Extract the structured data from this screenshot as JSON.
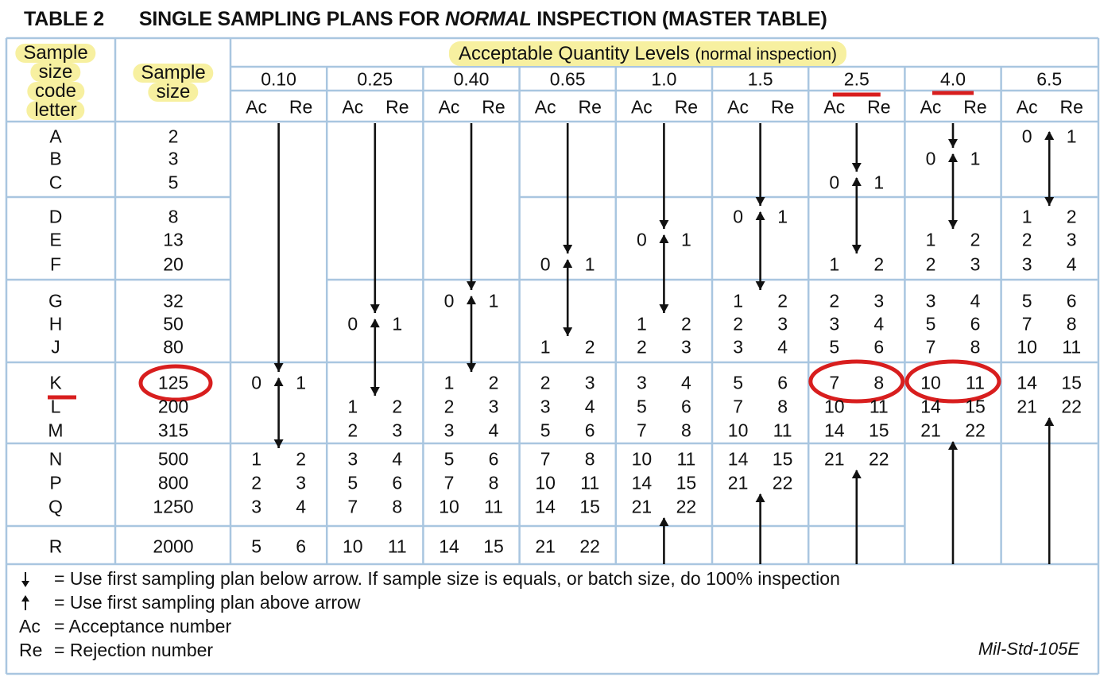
{
  "title": {
    "lead": "TABLE 2",
    "pre": "SINGLE SAMPLING PLANS FOR ",
    "emph": "NORMAL",
    "post": " INSPECTION (MASTER TABLE)"
  },
  "header": {
    "code_letter": [
      "Sample",
      "size",
      "code",
      "letter"
    ],
    "sample_size": [
      "Sample",
      "size"
    ],
    "aql_label": "Acceptable Quantity Levels",
    "aql_sub": "(normal inspection)",
    "aql_levels": [
      "0.10",
      "0.25",
      "0.40",
      "0.65",
      "1.0",
      "1.5",
      "2.5",
      "4.0",
      "6.5"
    ],
    "ac": "Ac",
    "re": "Re"
  },
  "code_letters": [
    "A",
    "B",
    "C",
    "D",
    "E",
    "F",
    "G",
    "H",
    "J",
    "K",
    "L",
    "M",
    "N",
    "P",
    "Q",
    "R"
  ],
  "sample_sizes": [
    "2",
    "3",
    "5",
    "8",
    "13",
    "20",
    "32",
    "50",
    "80",
    "125",
    "200",
    "315",
    "500",
    "800",
    "1250",
    "2000"
  ],
  "plans": [
    [
      null,
      null,
      null,
      null,
      null,
      null,
      null,
      null,
      null,
      [
        0,
        1
      ],
      null,
      null,
      [
        1,
        2
      ],
      [
        2,
        3
      ],
      [
        3,
        4
      ],
      [
        5,
        6
      ]
    ],
    [
      null,
      null,
      null,
      null,
      null,
      null,
      null,
      [
        0,
        1
      ],
      null,
      null,
      [
        1,
        2
      ],
      [
        2,
        3
      ],
      [
        3,
        4
      ],
      [
        5,
        6
      ],
      [
        7,
        8
      ],
      [
        10,
        11
      ]
    ],
    [
      null,
      null,
      null,
      null,
      null,
      null,
      [
        0,
        1
      ],
      null,
      null,
      [
        1,
        2
      ],
      [
        2,
        3
      ],
      [
        3,
        4
      ],
      [
        5,
        6
      ],
      [
        7,
        8
      ],
      [
        10,
        11
      ],
      [
        14,
        15
      ]
    ],
    [
      null,
      null,
      null,
      null,
      null,
      [
        0,
        1
      ],
      null,
      null,
      [
        1,
        2
      ],
      [
        2,
        3
      ],
      [
        3,
        4
      ],
      [
        5,
        6
      ],
      [
        7,
        8
      ],
      [
        10,
        11
      ],
      [
        14,
        15
      ],
      [
        21,
        22
      ]
    ],
    [
      null,
      null,
      null,
      null,
      [
        0,
        1
      ],
      null,
      null,
      [
        1,
        2
      ],
      [
        2,
        3
      ],
      [
        3,
        4
      ],
      [
        5,
        6
      ],
      [
        7,
        8
      ],
      [
        10,
        11
      ],
      [
        14,
        15
      ],
      [
        21,
        22
      ],
      null
    ],
    [
      null,
      null,
      null,
      [
        0,
        1
      ],
      null,
      null,
      [
        1,
        2
      ],
      [
        2,
        3
      ],
      [
        3,
        4
      ],
      [
        5,
        6
      ],
      [
        7,
        8
      ],
      [
        10,
        11
      ],
      [
        14,
        15
      ],
      [
        21,
        22
      ],
      null,
      null
    ],
    [
      null,
      null,
      [
        0,
        1
      ],
      null,
      null,
      [
        1,
        2
      ],
      [
        2,
        3
      ],
      [
        3,
        4
      ],
      [
        5,
        6
      ],
      [
        7,
        8
      ],
      [
        10,
        11
      ],
      [
        14,
        15
      ],
      [
        21,
        22
      ],
      null,
      null,
      null
    ],
    [
      null,
      [
        0,
        1
      ],
      null,
      null,
      [
        1,
        2
      ],
      [
        2,
        3
      ],
      [
        3,
        4
      ],
      [
        5,
        6
      ],
      [
        7,
        8
      ],
      [
        10,
        11
      ],
      [
        14,
        15
      ],
      [
        21,
        22
      ],
      null,
      null,
      null,
      null
    ],
    [
      [
        0,
        1
      ],
      null,
      null,
      [
        1,
        2
      ],
      [
        2,
        3
      ],
      [
        3,
        4
      ],
      [
        5,
        6
      ],
      [
        7,
        8
      ],
      [
        10,
        11
      ],
      [
        14,
        15
      ],
      [
        21,
        22
      ],
      null,
      null,
      null,
      null,
      null
    ]
  ],
  "legend": [
    {
      "icon": "arrow-down-icon",
      "text": "= Use first sampling plan below arrow. If sample size is equals, or batch size, do 100% inspection"
    },
    {
      "icon": "arrow-up-icon",
      "text": "= Use first sampling plan above arrow"
    },
    {
      "symbol": "Ac",
      "text": "= Acceptance number"
    },
    {
      "symbol": "Re",
      "text": "= Rejection number"
    }
  ],
  "source": "Mil-Std-105E",
  "colors": {
    "grid": "#a9c6e0",
    "highlight": "#f7f0a0",
    "annotation": "#d81e1e"
  }
}
